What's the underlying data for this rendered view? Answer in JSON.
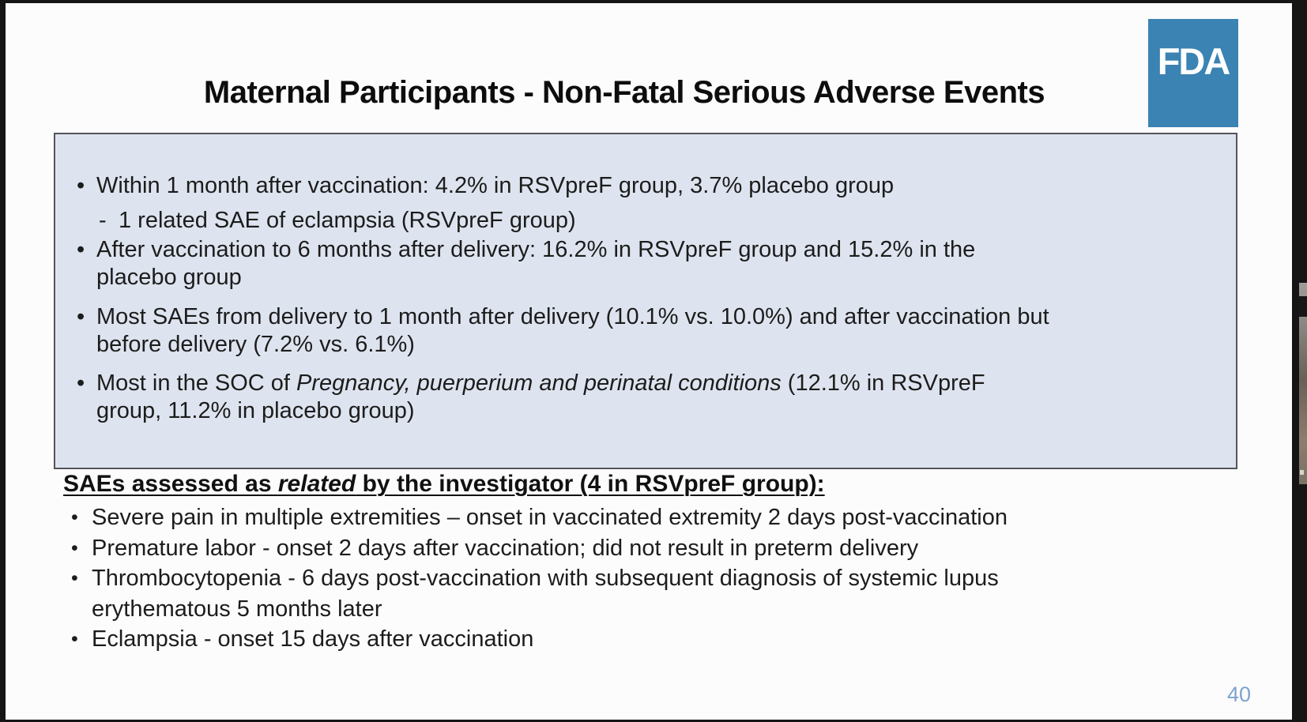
{
  "slide": {
    "title": "Maternal Participants - Non-Fatal Serious Adverse Events",
    "page_number": "40"
  },
  "logo": {
    "text": "FDA",
    "color": "#3b83b2"
  },
  "colors": {
    "summary_box_fill": "#dee4ef",
    "summary_box_border": "#54555a",
    "page_number_text": "#7ea3cd",
    "body_text": "#1c1c1c"
  },
  "summary_box": {
    "items": [
      {
        "marker": "•",
        "line1": "Within 1 month after vaccination: 4.2% in RSVpreF group, 3.7% placebo group"
      },
      {
        "marker": "-",
        "line1": "1 related SAE of eclampsia (RSVpreF group)"
      },
      {
        "marker": "•",
        "line1": "After vaccination to 6 months after delivery: 16.2% in RSVpreF group and 15.2% in the",
        "line2": "placebo group"
      },
      {
        "marker": "•",
        "line1": "Most SAEs from delivery to 1 month after delivery (10.1% vs. 10.0%) and after vaccination but",
        "line2": "before delivery (7.2% vs. 6.1%)"
      },
      {
        "marker": "•",
        "line1_prefix": "Most in the SOC of ",
        "line1_italic": "Pregnancy, puerperium and perinatal conditions",
        "line1_suffix": " (12.1% in RSVpreF",
        "line2": "group, 11.2% in placebo group)"
      }
    ]
  },
  "related_section": {
    "heading_prefix": "SAEs assessed as ",
    "heading_italic": "related",
    "heading_suffix": " by the investigator (4 in RSVpreF group):",
    "items": [
      {
        "marker": "•",
        "line1": "Severe pain in multiple extremities – onset in vaccinated extremity 2 days post-vaccination"
      },
      {
        "marker": "•",
        "line1": "Premature labor - onset 2 days after vaccination; did not result in preterm delivery"
      },
      {
        "marker": "•",
        "line1": "Thrombocytopenia - 6 days post-vaccination with subsequent diagnosis of systemic lupus",
        "line2": "erythematous 5 months later"
      },
      {
        "marker": "•",
        "line1": "Eclampsia - onset 15 days after vaccination"
      }
    ]
  }
}
